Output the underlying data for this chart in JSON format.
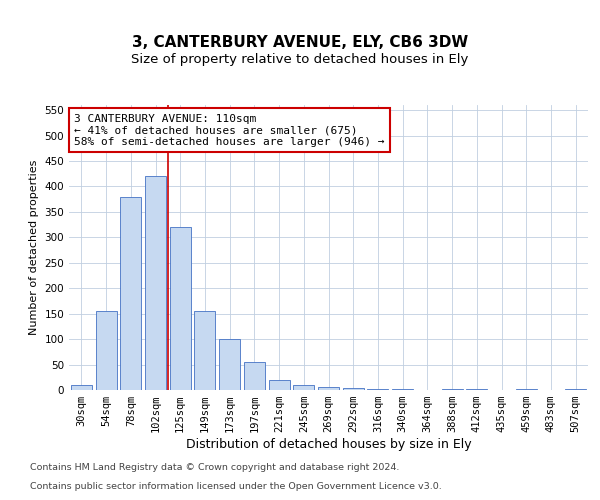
{
  "title1": "3, CANTERBURY AVENUE, ELY, CB6 3DW",
  "title2": "Size of property relative to detached houses in Ely",
  "xlabel": "Distribution of detached houses by size in Ely",
  "ylabel": "Number of detached properties",
  "bar_categories": [
    "30sqm",
    "54sqm",
    "78sqm",
    "102sqm",
    "125sqm",
    "149sqm",
    "173sqm",
    "197sqm",
    "221sqm",
    "245sqm",
    "269sqm",
    "292sqm",
    "316sqm",
    "340sqm",
    "364sqm",
    "388sqm",
    "412sqm",
    "435sqm",
    "459sqm",
    "483sqm",
    "507sqm"
  ],
  "bar_values": [
    10,
    155,
    380,
    420,
    320,
    155,
    100,
    55,
    20,
    10,
    5,
    3,
    1,
    2,
    0,
    1,
    1,
    0,
    1,
    0,
    1
  ],
  "bar_color": "#c6d9f1",
  "bar_edge_color": "#4472c4",
  "red_line_x": 3.5,
  "annotation_text": "3 CANTERBURY AVENUE: 110sqm\n← 41% of detached houses are smaller (675)\n58% of semi-detached houses are larger (946) →",
  "annotation_box_color": "#ffffff",
  "annotation_box_edge_color": "#cc0000",
  "ylim": [
    0,
    560
  ],
  "yticks": [
    0,
    50,
    100,
    150,
    200,
    250,
    300,
    350,
    400,
    450,
    500,
    550
  ],
  "footnote1": "Contains HM Land Registry data © Crown copyright and database right 2024.",
  "footnote2": "Contains public sector information licensed under the Open Government Licence v3.0.",
  "background_color": "#ffffff",
  "grid_color": "#c0cfe0",
  "title1_fontsize": 11,
  "title2_fontsize": 9.5,
  "xlabel_fontsize": 9,
  "ylabel_fontsize": 8,
  "tick_fontsize": 7.5,
  "annotation_fontsize": 8,
  "footnote_fontsize": 6.8
}
